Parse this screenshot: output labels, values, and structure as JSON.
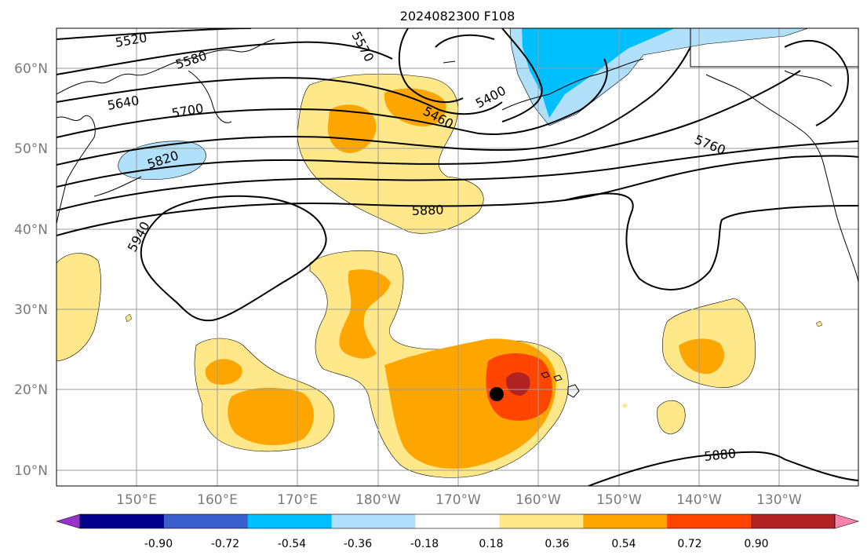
{
  "title": "2024082300 F108",
  "lon_ticks": [
    "150°E",
    "160°E",
    "170°E",
    "180°W",
    "170°W",
    "160°W",
    "150°W",
    "140°W",
    "130°W"
  ],
  "lat_ticks": [
    "60°N",
    "50°N",
    "40°N",
    "30°N",
    "20°N",
    "10°N"
  ],
  "contour_labels": [
    "5520",
    "5580",
    "5640",
    "5700",
    "5820",
    "5940",
    "5570",
    "5460",
    "5400",
    "5760",
    "5880",
    "5880"
  ],
  "colorbar": {
    "tick_labels": [
      "-0.90",
      "-0.72",
      "-0.54",
      "-0.36",
      "-0.18",
      "0.18",
      "0.36",
      "0.54",
      "0.72",
      "0.90"
    ],
    "colors": [
      "#9932cc",
      "#00008b",
      "#3a5fcd",
      "#00bfff",
      "#b0e0fa",
      "#ffffff",
      "#ffe88a",
      "#ffa500",
      "#ff4500",
      "#b22222",
      "#ff82ab"
    ]
  },
  "marker": {
    "label": "storm center",
    "color": "#000000"
  }
}
